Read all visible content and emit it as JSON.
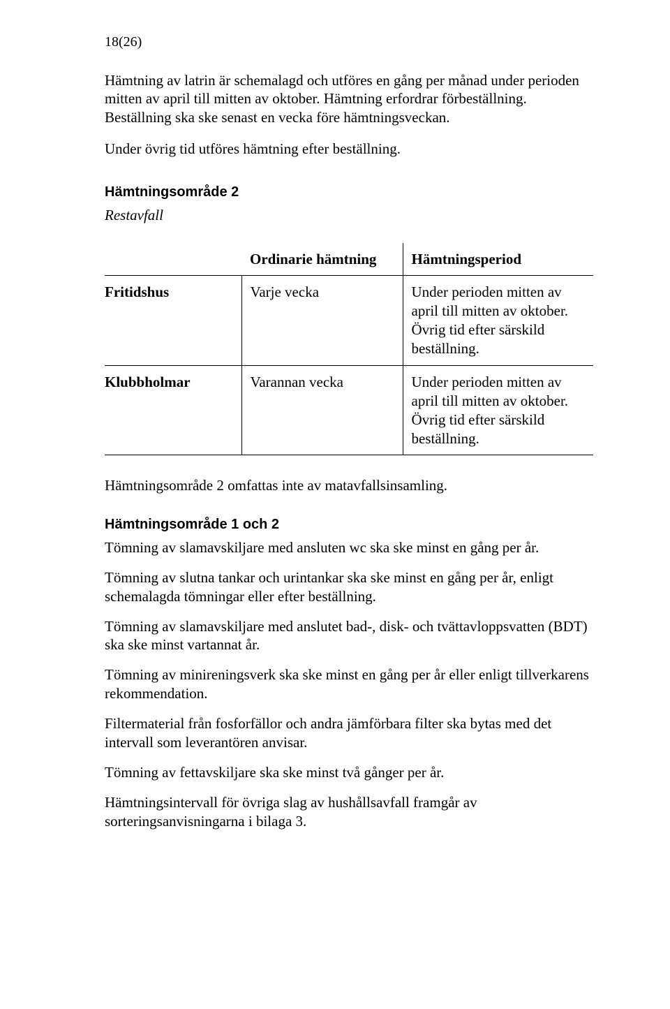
{
  "page_number": "18(26)",
  "intro": {
    "p1": "Hämtning av latrin är schemalagd och utföres en gång per månad under perioden mitten av april till mitten av oktober. Hämtning erfordrar förbeställning. Beställning ska ske senast en vecka före hämtningsveckan.",
    "p2": "Under övrig tid utföres hämtning efter beställning."
  },
  "section1": {
    "heading": "Hämtningsområde 2",
    "subheading": "Restavfall",
    "table": {
      "columns": [
        "",
        "Ordinarie hämtning",
        "Hämtningsperiod"
      ],
      "rows": [
        {
          "label": "Fritidshus",
          "freq": "Varje vecka",
          "period": "Under perioden mitten av april till mitten av oktober. Övrig tid efter särskild beställning."
        },
        {
          "label": "Klubbholmar",
          "freq": "Varannan vecka",
          "period": "Under perioden mitten av april till mitten av oktober. Övrig tid efter särskild beställning."
        }
      ]
    },
    "after": "Hämtningsområde 2 omfattas inte av matavfallsinsamling."
  },
  "section2": {
    "heading": "Hämtningsområde 1 och 2",
    "paras": [
      "Tömning av slamavskiljare med ansluten wc ska ske minst en gång per år.",
      "Tömning av slutna tankar och urintankar ska ske minst en gång per år, enligt schemalagda tömningar eller efter beställning.",
      "Tömning av slamavskiljare med anslutet bad-, disk- och tvättavloppsvatten (BDT) ska ske minst vartannat år.",
      "Tömning av minireningsverk ska ske minst en gång per år eller enligt tillverkarens rekommendation.",
      "Filtermaterial från fosforfällor och andra jämförbara filter ska bytas med det intervall som leverantören anvisar.",
      "Tömning av fettavskiljare ska ske minst två gånger per år.",
      "Hämtningsintervall för övriga slag av hushållsavfall framgår av sorteringsanvisningarna i bilaga 3."
    ]
  }
}
